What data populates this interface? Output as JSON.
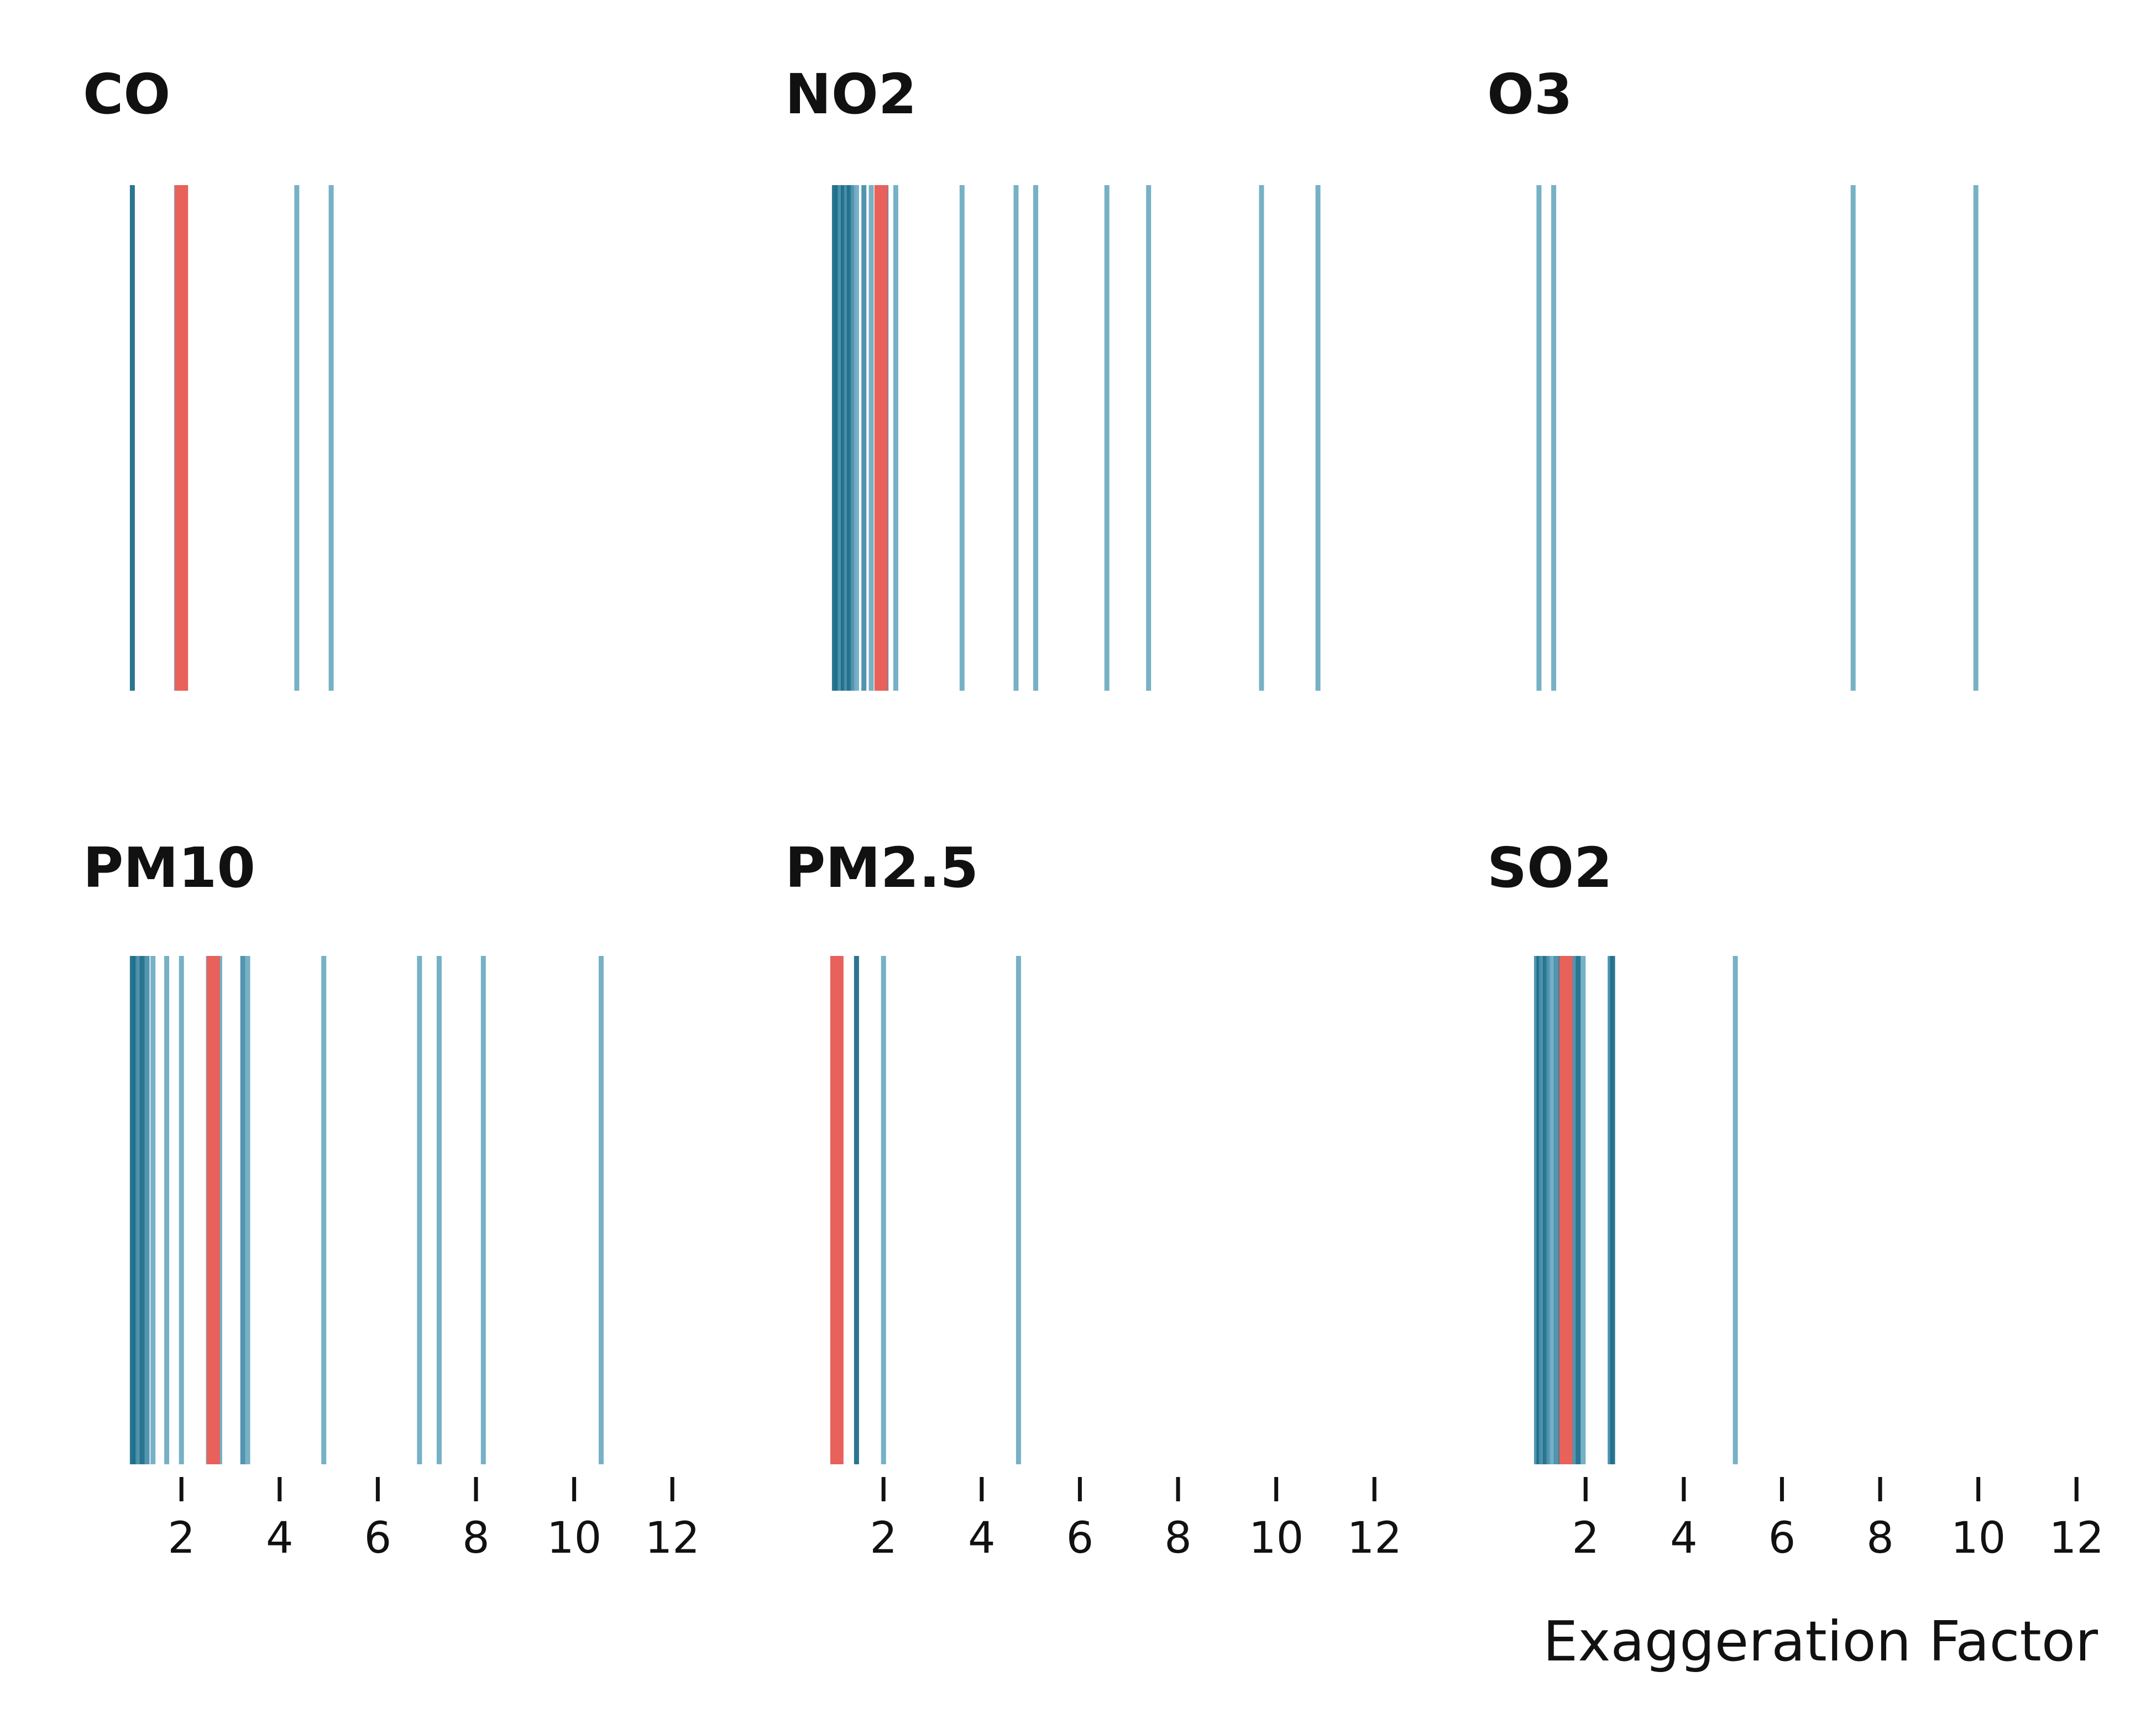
{
  "chart_data": {
    "type": "strip",
    "xlabel": "Exaggeration Factor",
    "xlim": [
      0.5,
      13
    ],
    "xticks": [
      2,
      4,
      6,
      8,
      10,
      12
    ],
    "colors": {
      "dark": "#1f6f8b",
      "mid": "#4a8fab",
      "light": "#6fadc4",
      "highlight": "#e8615a"
    },
    "panels": [
      {
        "name": "CO",
        "values": [
          1.0,
          1.9,
          4.35,
          5.05
        ],
        "shades": [
          "dark",
          "light",
          "light",
          "light"
        ],
        "highlight": 2.0
      },
      {
        "name": "NO2",
        "values": [
          1.0,
          1.05,
          1.12,
          1.18,
          1.25,
          1.3,
          1.38,
          1.45,
          1.6,
          1.75,
          1.9,
          2.05,
          2.25,
          3.6,
          4.7,
          5.1,
          6.55,
          7.4,
          9.7,
          10.85
        ],
        "shades": [
          "dark",
          "dark",
          "mid",
          "dark",
          "mid",
          "dark",
          "mid",
          "light",
          "mid",
          "light",
          "mid",
          "mid",
          "light",
          "light",
          "light",
          "light",
          "light",
          "light",
          "light",
          "light"
        ],
        "highlight": 1.95
      },
      {
        "name": "O3",
        "values": [
          1.05,
          1.35,
          7.45,
          9.95
        ],
        "shades": [
          "light",
          "light",
          "light",
          "light"
        ],
        "highlight": null
      },
      {
        "name": "PM10",
        "values": [
          1.0,
          1.05,
          1.12,
          1.2,
          1.3,
          1.42,
          1.7,
          2.0,
          2.55,
          2.78,
          3.25,
          3.35,
          4.9,
          6.85,
          7.25,
          8.15,
          10.55
        ],
        "shades": [
          "dark",
          "dark",
          "mid",
          "dark",
          "mid",
          "light",
          "light",
          "light",
          "light",
          "light",
          "mid",
          "light",
          "light",
          "light",
          "light",
          "light",
          "light"
        ],
        "highlight": 2.65
      },
      {
        "name": "PM2.5",
        "values": [
          1.45,
          2.0,
          4.75
        ],
        "shades": [
          "dark",
          "light",
          "light"
        ],
        "highlight": 1.05
      },
      {
        "name": "SO2",
        "values": [
          1.0,
          1.05,
          1.1,
          1.18,
          1.25,
          1.32,
          1.4,
          1.5,
          1.62,
          1.75,
          1.85,
          1.95,
          2.5,
          2.55,
          5.05
        ],
        "shades": [
          "mid",
          "dark",
          "mid",
          "dark",
          "mid",
          "light",
          "mid",
          "dark",
          "mid",
          "mid",
          "dark",
          "light",
          "mid",
          "dark",
          "light"
        ],
        "highlight": 1.6
      }
    ]
  }
}
